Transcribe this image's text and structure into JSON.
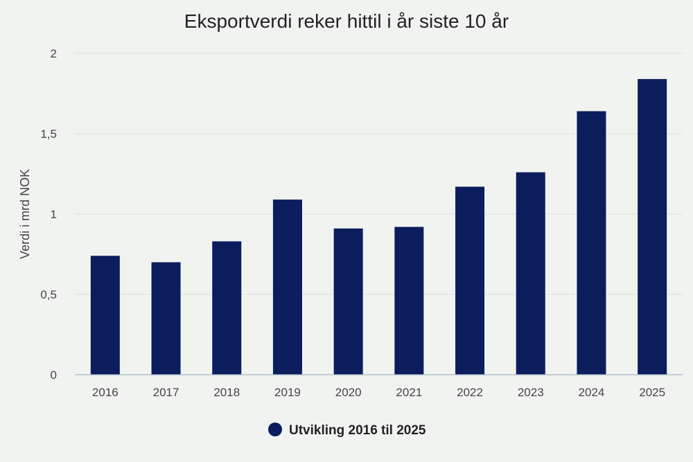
{
  "chart_data": {
    "type": "bar",
    "title": "Eksportverdi reker hittil i år siste 10 år",
    "ylabel": "Verdi i mrd NOK",
    "xlabel": "",
    "categories": [
      "2016",
      "2017",
      "2018",
      "2019",
      "2020",
      "2021",
      "2022",
      "2023",
      "2024",
      "2025"
    ],
    "series": [
      {
        "name": "Utvikling 2016 til 2025",
        "color": "#0b1d5c",
        "values": [
          0.74,
          0.7,
          0.83,
          1.09,
          0.91,
          0.92,
          1.17,
          1.26,
          1.64,
          1.84
        ]
      }
    ],
    "ylim": [
      0,
      2
    ],
    "yticks": [
      0,
      0.5,
      1,
      1.5,
      2
    ],
    "ytick_labels": [
      "0",
      "0,5",
      "1",
      "1,5",
      "2"
    ],
    "grid": true,
    "legend_position": "bottom-center"
  }
}
